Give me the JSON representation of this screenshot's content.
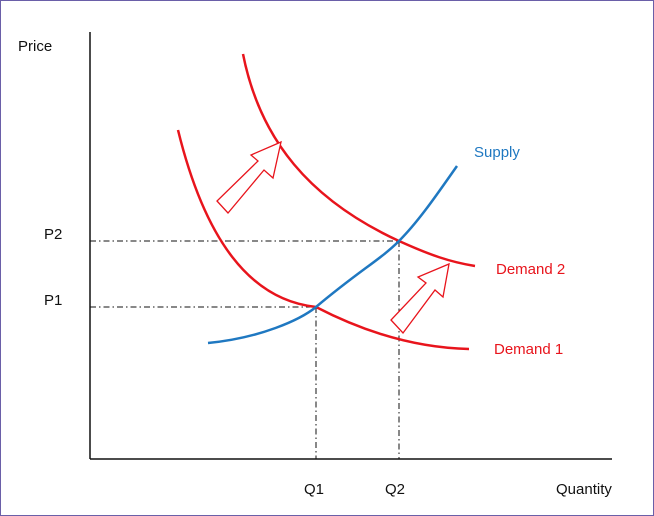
{
  "labels": {
    "price_axis": "Price",
    "quantity_axis": "Quantity",
    "p1": "P1",
    "p2": "P2",
    "q1": "Q1",
    "q2": "Q2",
    "supply": "Supply",
    "demand1": "Demand 1",
    "demand2": "Demand 2"
  },
  "colors": {
    "supply": "#1f78c1",
    "demand": "#e8141c",
    "axis": "#111111",
    "frame": "#6a5fa8"
  },
  "icons": {
    "shift_arrow": "arrow-up-right-outline-icon"
  }
}
